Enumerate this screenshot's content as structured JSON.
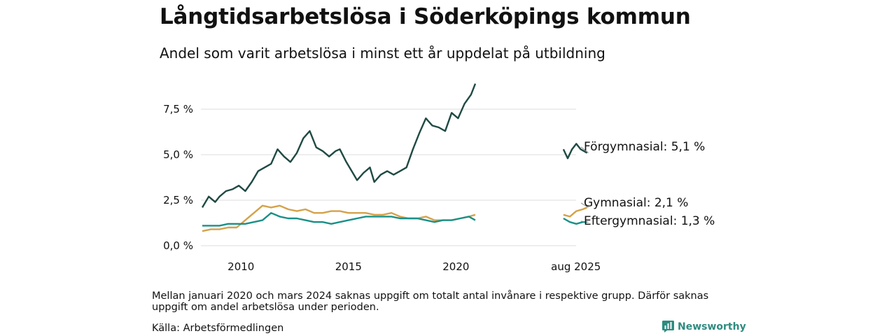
{
  "title": "Långtidsarbetslösa i Söderköpings kommun",
  "subtitle": "Andel som varit arbetslösa i minst ett år uppdelat på utbildning",
  "note": "Mellan januari 2020 och mars 2024 saknas uppgift om totalt antal invånare i respektive grupp. Därför saknas uppgift om andel arbetslösa under perioden.",
  "source": "Källa: Arbetsförmedlingen",
  "brand": {
    "name": "Newsworthy",
    "icon": "bar-chart-logo-icon",
    "color": "#2e8b80"
  },
  "chart_data": {
    "type": "line",
    "x_ticks": [
      {
        "x": 2010,
        "label": "2010"
      },
      {
        "x": 2015,
        "label": "2015"
      },
      {
        "x": 2020,
        "label": "2020"
      },
      {
        "x": 2025.58,
        "label": "aug 2025"
      }
    ],
    "y_ticks": [
      {
        "y": 0,
        "label": "0,0 %"
      },
      {
        "y": 2.5,
        "label": "2,5 %"
      },
      {
        "y": 5,
        "label": "5,0 %"
      },
      {
        "y": 7.5,
        "label": "7,5 %"
      }
    ],
    "ylim": [
      0,
      9
    ],
    "grid": true,
    "series": [
      {
        "name": "Förgymnasial",
        "end_label": "Förgymnasial: 5,1 %",
        "color": "#1f4a43",
        "segments": [
          [
            [
              2008.2,
              2.1
            ],
            [
              2008.5,
              2.7
            ],
            [
              2008.8,
              2.4
            ],
            [
              2009.0,
              2.7
            ],
            [
              2009.3,
              3.0
            ],
            [
              2009.6,
              3.1
            ],
            [
              2009.9,
              3.3
            ],
            [
              2010.2,
              3.0
            ],
            [
              2010.5,
              3.5
            ],
            [
              2010.8,
              4.1
            ],
            [
              2011.1,
              4.3
            ],
            [
              2011.4,
              4.5
            ],
            [
              2011.7,
              5.3
            ],
            [
              2012.0,
              4.9
            ],
            [
              2012.3,
              4.6
            ],
            [
              2012.6,
              5.1
            ],
            [
              2012.9,
              5.9
            ],
            [
              2013.2,
              6.3
            ],
            [
              2013.5,
              5.4
            ],
            [
              2013.8,
              5.2
            ],
            [
              2014.1,
              4.9
            ],
            [
              2014.4,
              5.2
            ],
            [
              2014.6,
              5.3
            ],
            [
              2014.9,
              4.6
            ],
            [
              2015.2,
              4.0
            ],
            [
              2015.4,
              3.6
            ],
            [
              2015.7,
              4.0
            ],
            [
              2016.0,
              4.3
            ],
            [
              2016.2,
              3.5
            ],
            [
              2016.5,
              3.9
            ],
            [
              2016.8,
              4.1
            ],
            [
              2017.1,
              3.9
            ],
            [
              2017.4,
              4.1
            ],
            [
              2017.7,
              4.3
            ],
            [
              2018.0,
              5.3
            ],
            [
              2018.3,
              6.2
            ],
            [
              2018.6,
              7.0
            ],
            [
              2018.9,
              6.6
            ],
            [
              2019.2,
              6.5
            ],
            [
              2019.5,
              6.3
            ],
            [
              2019.8,
              7.3
            ],
            [
              2020.1,
              7.0
            ],
            [
              2020.4,
              7.8
            ],
            [
              2020.7,
              8.3
            ],
            [
              2020.9,
              8.9
            ]
          ],
          [
            [
              2025.0,
              5.3
            ],
            [
              2025.2,
              4.8
            ],
            [
              2025.4,
              5.3
            ],
            [
              2025.6,
              5.6
            ],
            [
              2025.8,
              5.3
            ],
            [
              2026.1,
              5.1
            ]
          ]
        ]
      },
      {
        "name": "Gymnasial",
        "end_label": "Gymnasial: 2,1 %",
        "color": "#d4a24a",
        "segments": [
          [
            [
              2008.2,
              0.8
            ],
            [
              2008.6,
              0.9
            ],
            [
              2009.0,
              0.9
            ],
            [
              2009.4,
              1.0
            ],
            [
              2009.8,
              1.0
            ],
            [
              2010.2,
              1.4
            ],
            [
              2010.6,
              1.8
            ],
            [
              2011.0,
              2.2
            ],
            [
              2011.4,
              2.1
            ],
            [
              2011.8,
              2.2
            ],
            [
              2012.2,
              2.0
            ],
            [
              2012.6,
              1.9
            ],
            [
              2013.0,
              2.0
            ],
            [
              2013.4,
              1.8
            ],
            [
              2013.8,
              1.8
            ],
            [
              2014.2,
              1.9
            ],
            [
              2014.6,
              1.9
            ],
            [
              2015.0,
              1.8
            ],
            [
              2015.4,
              1.8
            ],
            [
              2015.8,
              1.8
            ],
            [
              2016.2,
              1.7
            ],
            [
              2016.6,
              1.7
            ],
            [
              2017.0,
              1.8
            ],
            [
              2017.4,
              1.6
            ],
            [
              2017.8,
              1.5
            ],
            [
              2018.2,
              1.5
            ],
            [
              2018.6,
              1.6
            ],
            [
              2019.0,
              1.4
            ],
            [
              2019.4,
              1.4
            ],
            [
              2019.8,
              1.4
            ],
            [
              2020.2,
              1.5
            ],
            [
              2020.6,
              1.6
            ],
            [
              2020.9,
              1.7
            ]
          ],
          [
            [
              2025.0,
              1.7
            ],
            [
              2025.3,
              1.6
            ],
            [
              2025.6,
              1.9
            ],
            [
              2025.9,
              2.0
            ],
            [
              2026.1,
              2.1
            ]
          ]
        ]
      },
      {
        "name": "Eftergymnasial",
        "end_label": "Eftergymnasial: 1,3 %",
        "color": "#1a9088",
        "segments": [
          [
            [
              2008.2,
              1.1
            ],
            [
              2008.6,
              1.1
            ],
            [
              2009.0,
              1.1
            ],
            [
              2009.4,
              1.2
            ],
            [
              2009.8,
              1.2
            ],
            [
              2010.2,
              1.2
            ],
            [
              2010.6,
              1.3
            ],
            [
              2011.0,
              1.4
            ],
            [
              2011.4,
              1.8
            ],
            [
              2011.8,
              1.6
            ],
            [
              2012.2,
              1.5
            ],
            [
              2012.6,
              1.5
            ],
            [
              2013.0,
              1.4
            ],
            [
              2013.4,
              1.3
            ],
            [
              2013.8,
              1.3
            ],
            [
              2014.2,
              1.2
            ],
            [
              2014.6,
              1.3
            ],
            [
              2015.0,
              1.4
            ],
            [
              2015.4,
              1.5
            ],
            [
              2015.8,
              1.6
            ],
            [
              2016.2,
              1.6
            ],
            [
              2016.6,
              1.6
            ],
            [
              2017.0,
              1.6
            ],
            [
              2017.4,
              1.5
            ],
            [
              2017.8,
              1.5
            ],
            [
              2018.2,
              1.5
            ],
            [
              2018.6,
              1.4
            ],
            [
              2019.0,
              1.3
            ],
            [
              2019.4,
              1.4
            ],
            [
              2019.8,
              1.4
            ],
            [
              2020.2,
              1.5
            ],
            [
              2020.6,
              1.6
            ],
            [
              2020.9,
              1.4
            ]
          ],
          [
            [
              2025.0,
              1.5
            ],
            [
              2025.3,
              1.3
            ],
            [
              2025.6,
              1.2
            ],
            [
              2025.9,
              1.3
            ],
            [
              2026.1,
              1.3
            ]
          ]
        ]
      }
    ]
  }
}
